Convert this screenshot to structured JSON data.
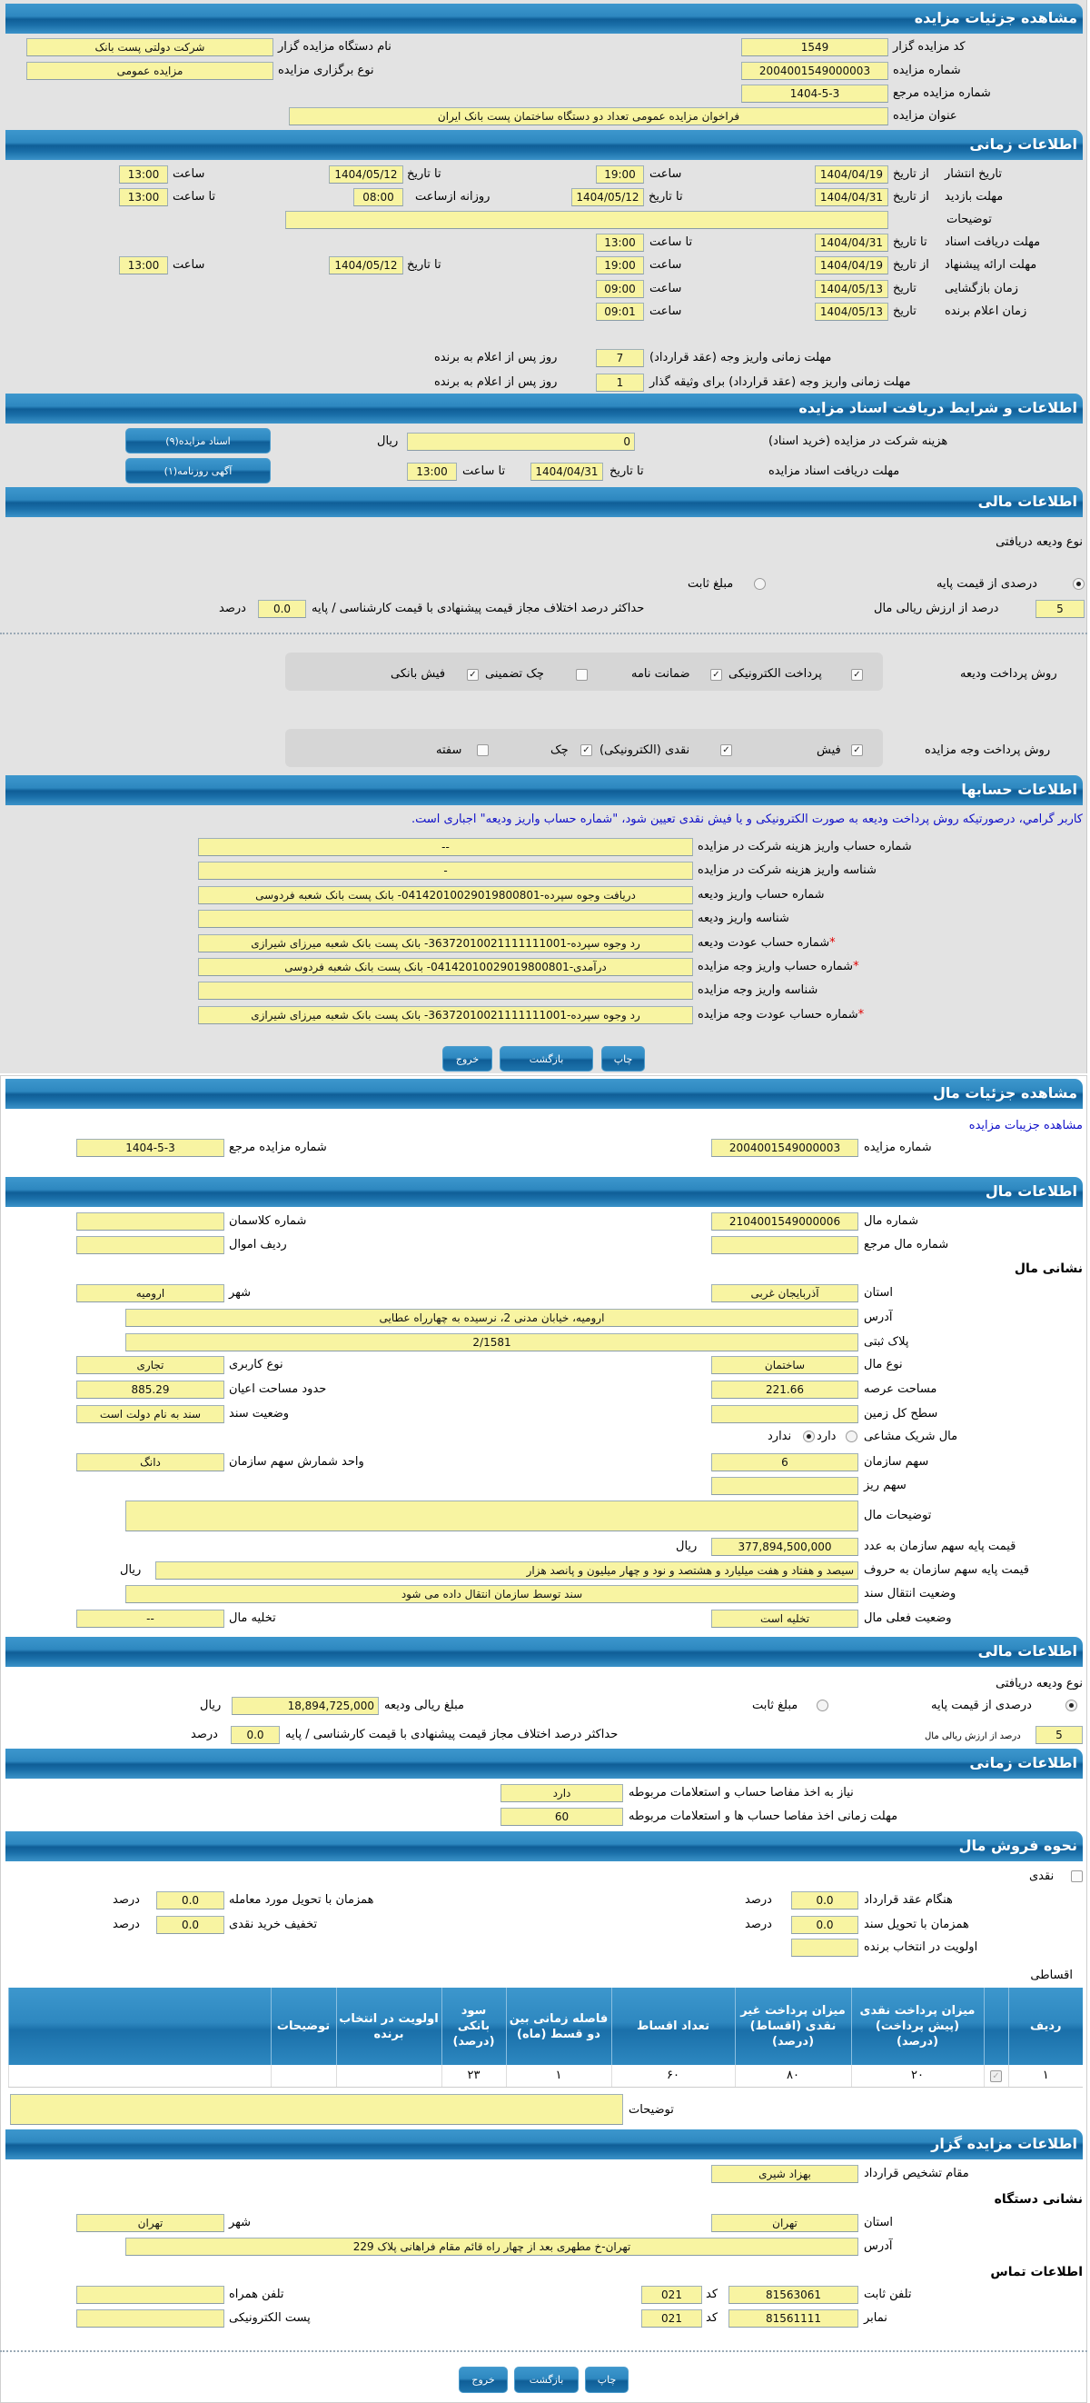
{
  "auction_details": {
    "title": "مشاهده جزئیات مزایده",
    "org_code_label": "کد مزایده گزار",
    "org_code": "1549",
    "org_name_label": "نام دستگاه مزایده گزار",
    "org_name": "شرکت دولتی پست بانک",
    "number_label": "شماره مزایده",
    "number": "2004001549000003",
    "type_label": "نوع برگزاری مزایده",
    "type": "مزایده عمومی",
    "ref_label": "شماره مزایده مرجع",
    "ref": "1404-5-3",
    "subject_label": "عنوان مزایده",
    "subject": "فراخوان مزایده عمومی تعداد دو دستگاه ساختمان پست بانک ایران"
  },
  "timing": {
    "title": "اطلاعات زمانی",
    "from_date": "از تاریخ",
    "to_date": "تا تاریخ",
    "date": "تاریخ",
    "hour": "ساعت",
    "to_hour": "تا ساعت",
    "daily_from": "روزانه ازساعت",
    "publish": {
      "label": "تاریخ انتشار",
      "from": "1404/04/19",
      "from_time": "19:00",
      "to": "1404/05/12",
      "to_time": "13:00"
    },
    "visit": {
      "label": "مهلت بازدید",
      "from": "1404/04/31",
      "to": "1404/05/12",
      "daily_from": "08:00",
      "daily_to": "13:00"
    },
    "notes_label": "توضیحات",
    "notes": "",
    "docs": {
      "label": "مهلت دریافت اسناد",
      "to": "1404/04/31",
      "to_time": "13:00"
    },
    "offer": {
      "label": "مهلت ارائه پیشنهاد",
      "from": "1404/04/19",
      "from_time": "19:00",
      "to": "1404/05/12",
      "to_time": "13:00"
    },
    "opening": {
      "label": "زمان بازگشایی",
      "date": "1404/05/13",
      "time": "09:00"
    },
    "winner": {
      "label": "زمان اعلام برنده",
      "date": "1404/05/13",
      "time": "09:01"
    },
    "pay_deadline": {
      "label": "مهلت زمانی واریز وجه (عقد قرارداد)",
      "value": "7",
      "suffix": "روز پس از اعلام به برنده"
    },
    "pay_deadline_collateral": {
      "label": "مهلت زمانی واریز وجه (عقد قرارداد) برای وثیقه گذار",
      "value": "1",
      "suffix": "روز پس از اعلام به برنده"
    }
  },
  "documents": {
    "title": "اطلاعات و شرایط دریافت اسناد مزایده",
    "fee_label": "هزینه شرکت در مزایده (خرید اسناد)",
    "fee": "0",
    "rial": "ریال",
    "deadline_label": "مهلت دریافت اسناد مزایده",
    "to_date_label": "تا تاریخ",
    "to_date": "1404/04/31",
    "to_time_label": "تا ساعت",
    "to_time": "13:00",
    "docs_button": "اسناد مزایده(۹)",
    "ad_button": "آگهی روزنامه(۱)"
  },
  "financial": {
    "title": "اطلاعات مالی",
    "deposit_type_label": "نوع ودیعه دریافتی",
    "percent_option": "درصدی از قیمت پایه",
    "fixed_option": "مبلغ ثابت",
    "selected": "percent",
    "percent": "5",
    "percent_suffix": "درصد از ارزش ریالی مال",
    "max_diff_label": "حداکثر درصد اختلاف مجاز قیمت پیشنهادی با قیمت کارشناسی / پایه",
    "max_diff": "0.0",
    "percent_unit": "درصد",
    "deposit_methods_label": "روش پرداخت ودیعه",
    "deposit_methods": [
      {
        "label": "پرداخت الکترونیکی",
        "checked": true
      },
      {
        "label": "ضمانت نامه",
        "checked": true
      },
      {
        "label": "چک تضمینی",
        "checked": false
      },
      {
        "label": "فیش بانکی",
        "checked": true
      }
    ],
    "payment_methods_label": "روش پرداخت وجه مزایده",
    "payment_methods": [
      {
        "label": "فیش",
        "checked": true
      },
      {
        "label": "نقدی (الکترونیکی)",
        "checked": true
      },
      {
        "label": "چک",
        "checked": true
      },
      {
        "label": "سفته",
        "checked": false
      }
    ]
  },
  "accounts": {
    "title": "اطلاعات حسابها",
    "notice": "کاربر گرامي، درصورتیکه روش پرداخت ودیعه به صورت الکترونیکی و یا فیش نقدی تعیین شود، \"شماره حساب واریز ودیعه\" اجباری است.",
    "rows": [
      {
        "label": "شماره حساب واریز هزینه شرکت در مزایده",
        "value": "--",
        "required": false
      },
      {
        "label": "شناسه واریز هزینه شرکت در مزایده",
        "value": "-",
        "required": false
      },
      {
        "label": "شماره حساب واریز ودیعه",
        "value": "دریافت وجوه سپرده-04142010029019800801- بانک پست بانک شعبه فردوسی",
        "required": false
      },
      {
        "label": "شناسه واریز ودیعه",
        "value": "",
        "required": false
      },
      {
        "label": "شماره حساب عودت ودیعه",
        "value": "رد وجوه سپرده-36372010021111111001- بانک پست بانک شعبه میرزای شیرازی",
        "required": true
      },
      {
        "label": "شماره حساب واریز وجه مزایده",
        "value": "درآمدی-04142010029019800801- بانک پست بانک شعبه فردوسی",
        "required": true
      },
      {
        "label": "شناسه واریز وجه مزایده",
        "value": "",
        "required": false
      },
      {
        "label": "شماره حساب عودت وجه مزایده",
        "value": "رد وجوه سپرده-36372010021111111001- بانک پست بانک شعبه میرزای شیرازی",
        "required": true
      }
    ],
    "required_mark": "*"
  },
  "buttons": {
    "print": "چاپ",
    "back": "بازگشت",
    "exit": "خروج"
  },
  "item_details": {
    "title": "مشاهده جزئیات مال",
    "link": "مشاهده جزیبات مزایده",
    "number_label": "شماره مزایده",
    "number": "2004001549000003",
    "ref_label": "شماره مزایده مرجع",
    "ref": "1404-5-3"
  },
  "item": {
    "title": "اطلاعات مال",
    "item_no_label": "شماره مال",
    "item_no": "2104001549000006",
    "class_no_label": "شماره کلاسمان",
    "class_no": "",
    "item_ref_label": "شماره مال مرجع",
    "item_ref": "",
    "asset_row_label": "ردیف اموال",
    "asset_row": "",
    "address_title": "نشانی مال",
    "province_label": "استان",
    "province": "آذربایجان غربی",
    "city_label": "شهر",
    "city": "ارومیه",
    "address_label": "آدرس",
    "address": "ارومیه، خیابان مدنی 2، نرسیده به چهارراه عطایی",
    "plaque_label": "پلاک ثبتی",
    "plaque": "2/1581",
    "type_label": "نوع مال",
    "type": "ساختمان",
    "usage_label": "نوع کاربری",
    "usage": "تجاری",
    "land_area_label": "مساحت عرصه",
    "land_area": "221.66",
    "building_area_label": "حدود مساحت اعیان",
    "building_area": "885.29",
    "total_land_label": "سطح کل زمین",
    "total_land": "",
    "deed_label": "وضعیت سند",
    "deed": "سند به نام دولت است",
    "shared_label": "مال شریک مشاعی",
    "shared_yes": "دارد",
    "shared_no": "ندارد",
    "shared": "no",
    "share_label": "سهم سازمان",
    "share": "6",
    "share_unit_label": "واحد شمارش سهم سازمان",
    "share_unit": "دانگ",
    "minor_share_label": "سهم ریز",
    "minor_share": "",
    "desc_label": "توضیحات مال",
    "desc": "",
    "base_price_label": "قیمت پایه سهم سازمان به عدد",
    "base_price": "377,894,500,000",
    "rial": "ریال",
    "base_price_words_label": "قیمت پایه سهم سازمان به حروف",
    "base_price_words": "سیصد و هفتاد و هفت میلیارد و هشتصد و نود و چهار میلیون و پانصد هزار",
    "transfer_label": "وضعیت انتقال سند",
    "transfer": "سند توسط سازمان انتقال داده می شود",
    "status_label": "وضعیت فعلی مال",
    "status": "تخلیه است",
    "evacuation_label": "تخلیه مال",
    "evacuation": "--"
  },
  "item_financial": {
    "title": "اطلاعات مالی",
    "deposit_type_label": "نوع ودیعه دریافتی",
    "percent_option": "درصدی از قیمت پایه",
    "fixed_option": "مبلغ ثابت",
    "selected": "percent",
    "deposit_amount_label": "مبلغ ریالی ودیعه",
    "deposit_amount": "18,894,725,000",
    "rial": "ریال",
    "percent": "5",
    "percent_suffix": "درصد از ارزش ریالی مال",
    "max_diff_label": "حداکثر درصد اختلاف مجاز قیمت پیشنهادی با قیمت کارشناسی / پایه",
    "max_diff": "0.0",
    "percent_unit": "درصد"
  },
  "item_timing": {
    "title": "اطلاعات زمانی",
    "clearance_label": "نیاز به اخذ مفاصا حساب و استعلامات مربوطه",
    "clearance": "دارد",
    "clearance_deadline_label": "مهلت زمانی اخذ مفاصا حساب ها و استعلامات مربوطه",
    "clearance_deadline": "60"
  },
  "sale": {
    "title": "نحوه فروش مال",
    "cash_label": "نقدی",
    "cash_checked": false,
    "contract_label": "هنگام عقد قرارداد",
    "contract": "0.0",
    "delivery_label": "همزمان با تحویل مورد معامله",
    "delivery": "0.0",
    "deed_label": "همزمان با تحویل سند",
    "deed": "0.0",
    "discount_label": "تخفیف خرید نقدی",
    "discount": "0.0",
    "priority_label": "اولویت در انتخاب برنده",
    "priority": "",
    "percent_unit": "درصد",
    "installment_label": "اقساطی",
    "table": {
      "headers": [
        "ردیف",
        "",
        "میزان پرداخت نقدی (پیش پرداخت) (درصد)",
        "میزان پرداخت غیر نقدی (اقساط) (درصد)",
        "تعداد اقساط",
        "فاصله زمانی بین دو قسط (ماه)",
        "سود بانکی (درصد)",
        "اولویت در انتخاب برنده",
        "توضیحات",
        ""
      ],
      "rows": [
        {
          "cells": [
            "۱",
            "",
            "۲۰",
            "۸۰",
            "۶۰",
            "۱",
            "۲۳",
            "",
            "",
            ""
          ],
          "checked": true
        }
      ]
    },
    "notes_label": "توضیحات",
    "notes": ""
  },
  "auctioneer": {
    "title": "اطلاعات مزایده گزار",
    "authority_label": "مقام تشخیص قرارداد",
    "authority": "بهزاد  شیری",
    "address_title": "نشانی دستگاه",
    "province_label": "استان",
    "province": "تهران",
    "city_label": "شهر",
    "city": "تهران",
    "address_label": "آدرس",
    "address": "تهران-خ مطهری بعد از چهار راه قائم مقام فراهانی پلاک 229",
    "contact_title": "اطلاعات تماس",
    "phone_label": "تلفن ثابت",
    "phone": "81563061",
    "code_label": "کد",
    "phone_code": "021",
    "mobile_label": "تلفن همراه",
    "mobile": "",
    "fax_label": "نمابر",
    "fax": "81561111",
    "fax_code": "021",
    "email_label": "پست الکترونیکی",
    "email": ""
  },
  "colors": {
    "header_blue": "#1a6fa9",
    "field_yellow": "#f8f4a2",
    "panel_gray": "#e3e3e3",
    "link_blue": "#1010c8",
    "required_red": "#e00000"
  }
}
